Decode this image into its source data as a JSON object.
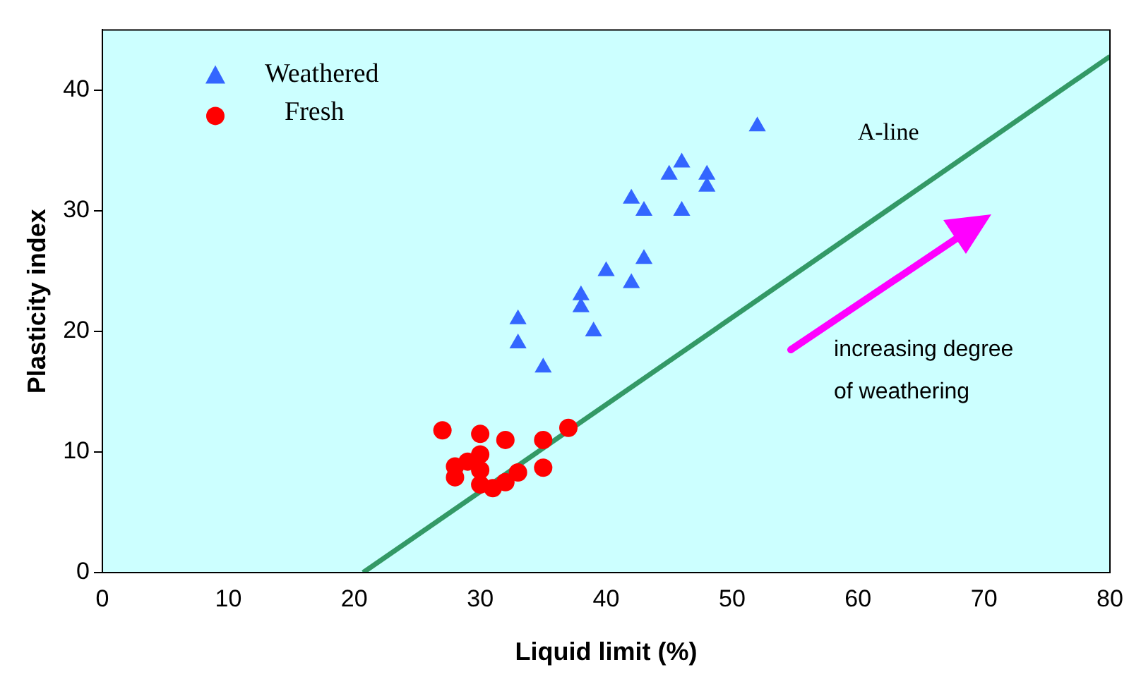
{
  "chart_data": {
    "type": "scatter",
    "xlabel": "Liquid limit (%)",
    "ylabel": "Plasticity index",
    "xlim": [
      0,
      80
    ],
    "ylim": [
      0,
      45
    ],
    "xticks": [
      0,
      10,
      20,
      30,
      40,
      50,
      60,
      70,
      80
    ],
    "yticks": [
      0,
      10,
      20,
      30,
      40
    ],
    "grid": false,
    "legend": "top left",
    "series": [
      {
        "name": "Weathered",
        "marker": "triangle",
        "color": "#3366ff",
        "x": [
          52,
          46,
          45,
          48,
          48,
          42,
          43,
          46,
          40,
          43,
          42,
          38,
          38,
          39,
          33,
          33,
          35
        ],
        "values": [
          37,
          34,
          33,
          33,
          32,
          31,
          30,
          30,
          25,
          26,
          24,
          23,
          22,
          20,
          21,
          19,
          17
        ]
      },
      {
        "name": "Fresh",
        "marker": "circle",
        "color": "#ff0000",
        "x": [
          27,
          30,
          32,
          35,
          37,
          28,
          28,
          29,
          30,
          30,
          30,
          31,
          32,
          33,
          35
        ],
        "values": [
          11.8,
          11.5,
          11,
          11,
          12,
          8.8,
          7.9,
          9.2,
          9.8,
          8.5,
          7.3,
          7,
          7.5,
          8.3,
          8.7
        ]
      },
      {
        "type": "line",
        "marker": "none",
        "color": "#339966",
        "x": [
          20.7,
          80
        ],
        "values": [
          0,
          42.8
        ]
      }
    ],
    "annotations": [
      "A-line",
      "increasing degree of weathering"
    ]
  }
}
